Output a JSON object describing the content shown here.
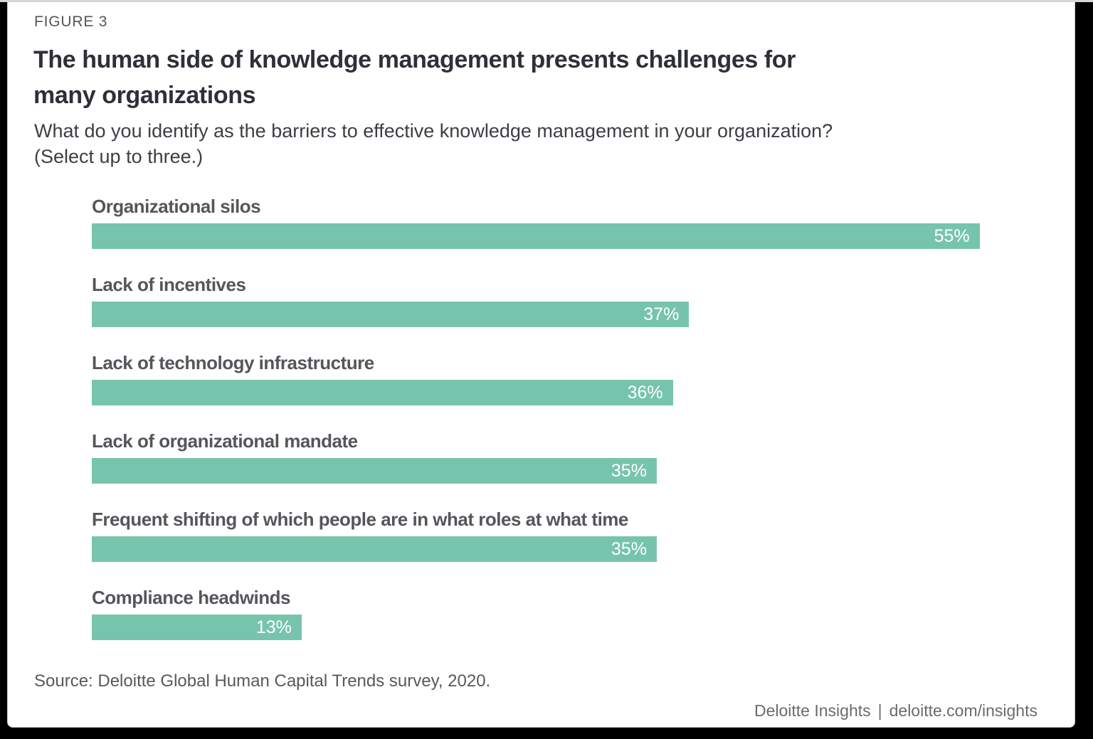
{
  "figure_label": "FIGURE 3",
  "title": {
    "line1": "The human side of knowledge management presents challenges for",
    "line2": "many organizations"
  },
  "subtitle": {
    "line1": "What do you identify as the barriers to effective knowledge management in your organization?",
    "line2": "(Select up to three.)"
  },
  "chart_data": {
    "type": "bar",
    "orientation": "horizontal",
    "categories": [
      "Organizational silos",
      "Lack of incentives",
      "Lack of technology infrastructure",
      "Lack of organizational mandate",
      "Frequent shifting of which people are in what roles at what time",
      "Compliance headwinds"
    ],
    "values": [
      55,
      37,
      36,
      35,
      35,
      13
    ],
    "value_labels": [
      "55%",
      "37%",
      "36%",
      "35%",
      "35%",
      "13%"
    ],
    "value_suffix": "%",
    "bar_color": "#77C4AC",
    "value_label_color": "#FFFFFF",
    "category_label_color": "#55565B",
    "axis_max_for_scaling": 57,
    "grid": false,
    "legend": false,
    "title": "The human side of knowledge management presents challenges for many organizations"
  },
  "footer": {
    "source": "Source: Deloitte Global Human Capital Trends survey, 2020.",
    "brand": "Deloitte Insights",
    "separator": "|",
    "url": "deloitte.com/insights"
  }
}
